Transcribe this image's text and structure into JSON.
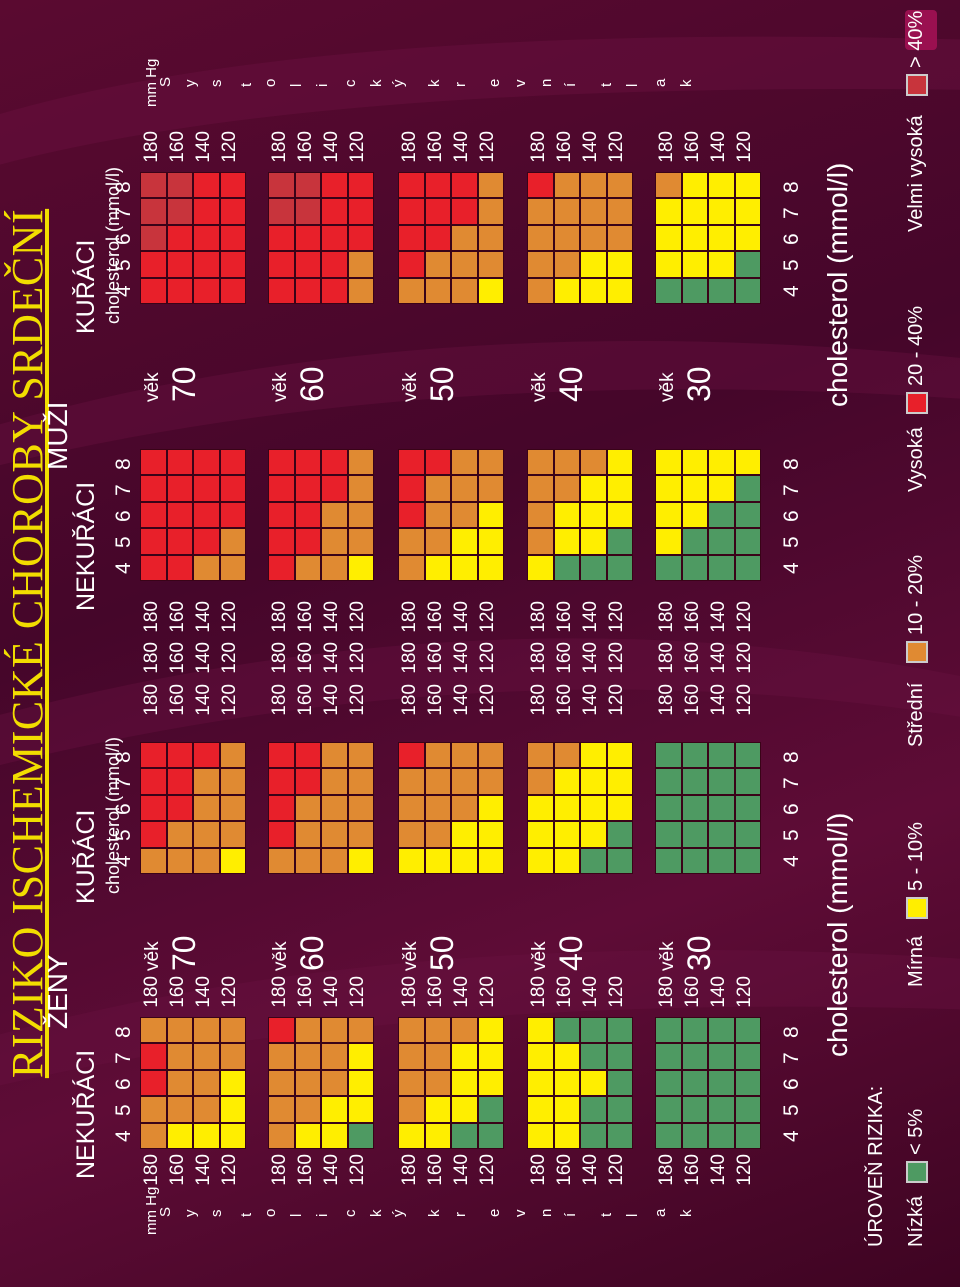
{
  "title": "RIZIKO ISCHEMICKÉ CHOROBY SRDEČNÍ",
  "sections": {
    "women": "ŽENY",
    "men": "MUŽI"
  },
  "groups": {
    "nonsmokers": "NEKUŘÁCI",
    "smokers": "KUŘÁCI"
  },
  "cholesterol_short": "cholesterol (mmol/l)",
  "cholesterol_big": "cholesterol (mmol/l)",
  "age_word": "věk",
  "bp_unit": "mm Hg",
  "rotated_label": {
    "left": [
      "S",
      "y",
      "s",
      "t",
      "o",
      "l",
      "i",
      "c",
      "k",
      "ý",
      "k",
      "r",
      "e",
      "v",
      "n",
      "í",
      "t",
      "l",
      "a",
      "k"
    ],
    "right": [
      "S",
      "y",
      "s",
      "t",
      "o",
      "l",
      "i",
      "c",
      "k",
      "ý",
      "k",
      "r",
      "e",
      "v",
      "n",
      "í",
      "t",
      "l",
      "a",
      "k"
    ]
  },
  "legend": {
    "title": "ÚROVEŇ RIZIKA:",
    "items": [
      {
        "name": "Nízká",
        "range": "< 5%",
        "color": "#4e9a62"
      },
      {
        "name": "Mírná",
        "range": "5 - 10%",
        "color": "#ffee00"
      },
      {
        "name": "Střední",
        "range": "10 - 20%",
        "color": "#e08a32"
      },
      {
        "name": "Vysoká",
        "range": "20 - 40%",
        "color": "#e8202a"
      },
      {
        "name": "Velmi vysoká",
        "range": "> 40%",
        "color": "#c8343c"
      }
    ]
  },
  "chart_data": {
    "type": "heatmap",
    "title": "RIZIKO ISCHEMICKÉ CHOROBY SRDEČNÍ",
    "x_label": "cholesterol (mmol/l)",
    "y_label": "Systolický tlak (mm Hg)",
    "x_values": [
      4,
      5,
      6,
      7,
      8
    ],
    "y_values": [
      180,
      160,
      140,
      120
    ],
    "ages": [
      70,
      60,
      50,
      40,
      30
    ],
    "levels": [
      "Nízká",
      "Mírná",
      "Střední",
      "Vysoká",
      "Velmi vysoká"
    ],
    "charts": [
      {
        "sex": "ŽENY",
        "group": "NEKUŘÁCI",
        "age": 70,
        "matrix": [
          [
            2,
            2,
            3,
            3,
            2
          ],
          [
            1,
            2,
            2,
            2,
            2
          ],
          [
            1,
            2,
            2,
            2,
            2
          ],
          [
            1,
            1,
            1,
            2,
            2
          ]
        ]
      },
      {
        "sex": "ŽENY",
        "group": "NEKUŘÁCI",
        "age": 60,
        "matrix": [
          [
            2,
            2,
            2,
            2,
            3
          ],
          [
            1,
            2,
            2,
            2,
            2
          ],
          [
            1,
            1,
            2,
            2,
            2
          ],
          [
            0,
            1,
            1,
            1,
            2
          ]
        ]
      },
      {
        "sex": "ŽENY",
        "group": "NEKUŘÁCI",
        "age": 50,
        "matrix": [
          [
            1,
            2,
            2,
            2,
            2
          ],
          [
            1,
            1,
            2,
            2,
            2
          ],
          [
            0,
            1,
            1,
            1,
            2
          ],
          [
            0,
            0,
            1,
            1,
            1
          ]
        ]
      },
      {
        "sex": "ŽENY",
        "group": "NEKUŘÁCI",
        "age": 40,
        "matrix": [
          [
            1,
            1,
            1,
            1,
            1
          ],
          [
            1,
            1,
            1,
            1,
            0
          ],
          [
            0,
            0,
            1,
            0,
            0
          ],
          [
            0,
            0,
            0,
            0,
            0
          ]
        ]
      },
      {
        "sex": "ŽENY",
        "group": "NEKUŘÁCI",
        "age": 30,
        "matrix": [
          [
            0,
            0,
            0,
            0,
            0
          ],
          [
            0,
            0,
            0,
            0,
            0
          ],
          [
            0,
            0,
            0,
            0,
            0
          ],
          [
            0,
            0,
            0,
            0,
            0
          ]
        ]
      },
      {
        "sex": "ŽENY",
        "group": "KUŘÁCI",
        "age": 70,
        "matrix": [
          [
            2,
            3,
            3,
            3,
            3
          ],
          [
            2,
            2,
            3,
            3,
            3
          ],
          [
            2,
            2,
            2,
            2,
            3
          ],
          [
            1,
            2,
            2,
            2,
            2
          ]
        ]
      },
      {
        "sex": "ŽENY",
        "group": "KUŘÁCI",
        "age": 60,
        "matrix": [
          [
            2,
            3,
            3,
            3,
            3
          ],
          [
            2,
            2,
            2,
            3,
            3
          ],
          [
            2,
            2,
            2,
            2,
            2
          ],
          [
            1,
            2,
            2,
            2,
            2
          ]
        ]
      },
      {
        "sex": "ŽENY",
        "group": "KUŘÁCI",
        "age": 50,
        "matrix": [
          [
            1,
            2,
            2,
            2,
            3
          ],
          [
            1,
            2,
            2,
            2,
            2
          ],
          [
            1,
            1,
            2,
            2,
            2
          ],
          [
            1,
            1,
            1,
            2,
            2
          ]
        ]
      },
      {
        "sex": "ŽENY",
        "group": "KUŘÁCI",
        "age": 40,
        "matrix": [
          [
            1,
            1,
            1,
            2,
            2
          ],
          [
            1,
            1,
            1,
            1,
            2
          ],
          [
            0,
            1,
            1,
            1,
            1
          ],
          [
            0,
            0,
            1,
            1,
            1
          ]
        ]
      },
      {
        "sex": "ŽENY",
        "group": "KUŘÁCI",
        "age": 30,
        "matrix": [
          [
            0,
            0,
            0,
            0,
            0
          ],
          [
            0,
            0,
            0,
            0,
            0
          ],
          [
            0,
            0,
            0,
            0,
            0
          ],
          [
            0,
            0,
            0,
            0,
            0
          ]
        ]
      },
      {
        "sex": "MUŽI",
        "group": "NEKUŘÁCI",
        "age": 70,
        "matrix": [
          [
            3,
            3,
            3,
            3,
            3
          ],
          [
            3,
            3,
            3,
            3,
            3
          ],
          [
            2,
            3,
            3,
            3,
            3
          ],
          [
            2,
            2,
            3,
            3,
            3
          ]
        ]
      },
      {
        "sex": "MUŽI",
        "group": "NEKUŘÁCI",
        "age": 60,
        "matrix": [
          [
            3,
            3,
            3,
            3,
            3
          ],
          [
            2,
            3,
            3,
            3,
            3
          ],
          [
            2,
            2,
            2,
            3,
            3
          ],
          [
            1,
            2,
            2,
            2,
            2
          ]
        ]
      },
      {
        "sex": "MUŽI",
        "group": "NEKUŘÁCI",
        "age": 50,
        "matrix": [
          [
            2,
            2,
            3,
            3,
            3
          ],
          [
            1,
            2,
            2,
            2,
            3
          ],
          [
            1,
            1,
            2,
            2,
            2
          ],
          [
            1,
            1,
            1,
            2,
            2
          ]
        ]
      },
      {
        "sex": "MUŽI",
        "group": "NEKUŘÁCI",
        "age": 40,
        "matrix": [
          [
            1,
            2,
            2,
            2,
            2
          ],
          [
            0,
            1,
            1,
            2,
            2
          ],
          [
            0,
            1,
            1,
            1,
            2
          ],
          [
            0,
            0,
            1,
            1,
            1
          ]
        ]
      },
      {
        "sex": "MUŽI",
        "group": "NEKUŘÁCI",
        "age": 30,
        "matrix": [
          [
            0,
            1,
            1,
            1,
            1
          ],
          [
            0,
            0,
            1,
            1,
            1
          ],
          [
            0,
            0,
            0,
            1,
            1
          ],
          [
            0,
            0,
            0,
            0,
            1
          ]
        ]
      },
      {
        "sex": "MUŽI",
        "group": "KUŘÁCI",
        "age": 70,
        "matrix": [
          [
            3,
            3,
            4,
            4,
            4
          ],
          [
            3,
            3,
            3,
            4,
            4
          ],
          [
            3,
            3,
            3,
            3,
            3
          ],
          [
            3,
            3,
            3,
            3,
            3
          ]
        ]
      },
      {
        "sex": "MUŽI",
        "group": "KUŘÁCI",
        "age": 60,
        "matrix": [
          [
            3,
            3,
            3,
            4,
            4
          ],
          [
            3,
            3,
            3,
            4,
            4
          ],
          [
            3,
            3,
            3,
            3,
            3
          ],
          [
            2,
            2,
            3,
            3,
            3
          ]
        ]
      },
      {
        "sex": "MUŽI",
        "group": "KUŘÁCI",
        "age": 50,
        "matrix": [
          [
            2,
            3,
            3,
            3,
            3
          ],
          [
            2,
            2,
            3,
            3,
            3
          ],
          [
            2,
            2,
            2,
            3,
            3
          ],
          [
            1,
            2,
            2,
            2,
            2
          ]
        ]
      },
      {
        "sex": "MUŽI",
        "group": "KUŘÁCI",
        "age": 40,
        "matrix": [
          [
            2,
            2,
            2,
            2,
            3
          ],
          [
            1,
            2,
            2,
            2,
            2
          ],
          [
            1,
            1,
            2,
            2,
            2
          ],
          [
            1,
            1,
            2,
            2,
            2
          ]
        ]
      },
      {
        "sex": "MUŽI",
        "group": "KUŘÁCI",
        "age": 30,
        "matrix": [
          [
            0,
            1,
            1,
            1,
            2
          ],
          [
            0,
            1,
            1,
            1,
            1
          ],
          [
            0,
            1,
            1,
            1,
            1
          ],
          [
            0,
            0,
            1,
            1,
            1
          ]
        ]
      }
    ]
  }
}
